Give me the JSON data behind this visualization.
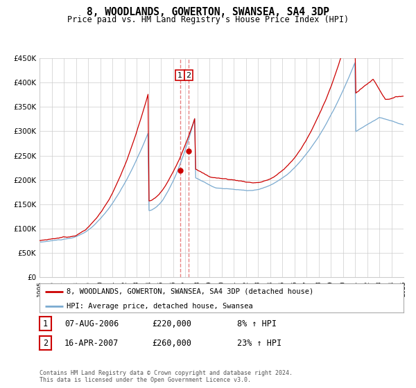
{
  "title": "8, WOODLANDS, GOWERTON, SWANSEA, SA4 3DP",
  "subtitle": "Price paid vs. HM Land Registry's House Price Index (HPI)",
  "background_color": "#ffffff",
  "plot_bg_color": "#ffffff",
  "grid_color": "#cccccc",
  "hpi_line_color": "#7aaad0",
  "price_line_color": "#cc0000",
  "vline_color": "#e88080",
  "sale1_t": 2006.583,
  "sale1_price": 220000,
  "sale2_t": 2007.292,
  "sale2_price": 260000,
  "legend_label_price": "8, WOODLANDS, GOWERTON, SWANSEA, SA4 3DP (detached house)",
  "legend_label_hpi": "HPI: Average price, detached house, Swansea",
  "table_row1": [
    "1",
    "07-AUG-2006",
    "£220,000",
    "8% ↑ HPI"
  ],
  "table_row2": [
    "2",
    "16-APR-2007",
    "£260,000",
    "23% ↑ HPI"
  ],
  "footer": "Contains HM Land Registry data © Crown copyright and database right 2024.\nThis data is licensed under the Open Government Licence v3.0.",
  "ylim": [
    0,
    450000
  ],
  "yticks": [
    0,
    50000,
    100000,
    150000,
    200000,
    250000,
    300000,
    350000,
    400000,
    450000
  ],
  "xstart": 1995.0,
  "xend": 2025.0,
  "seed_hpi": 10,
  "seed_price": 7
}
